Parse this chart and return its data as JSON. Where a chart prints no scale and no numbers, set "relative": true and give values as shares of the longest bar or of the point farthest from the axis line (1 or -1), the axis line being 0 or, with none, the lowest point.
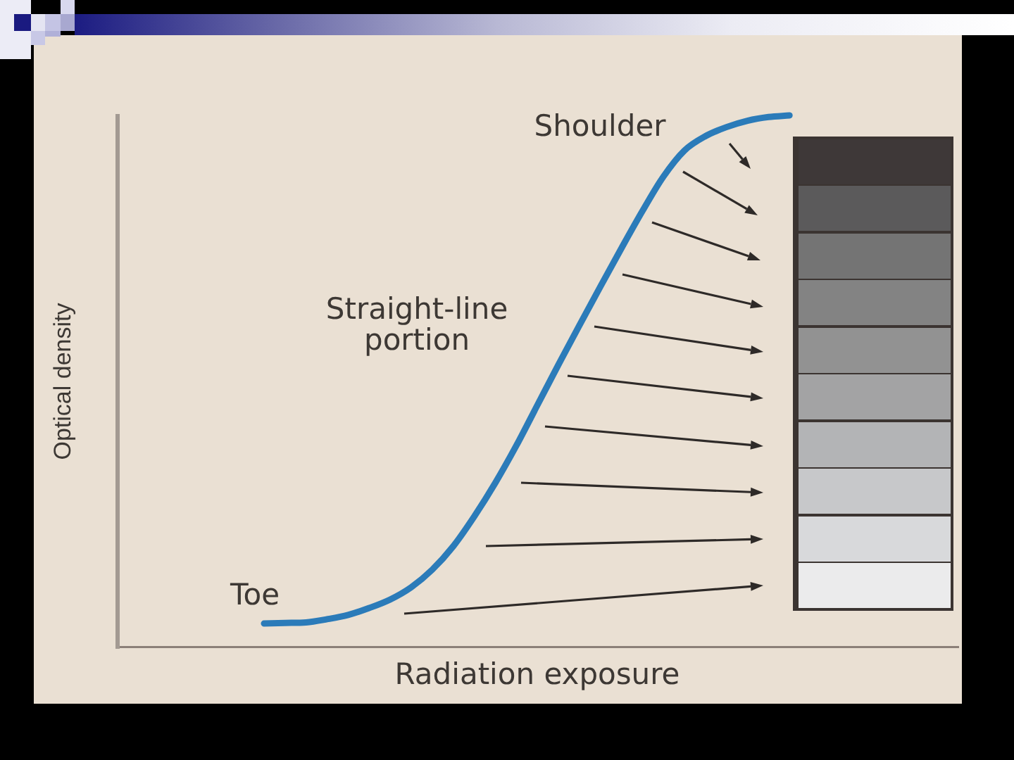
{
  "chart_data": {
    "type": "line",
    "xlabel": "Radiation exposure",
    "ylabel": "Optical density",
    "relative": true,
    "categories": [
      null,
      null,
      null,
      null,
      null,
      null,
      null,
      null,
      null,
      null,
      null,
      null,
      null,
      null,
      null,
      null,
      null,
      null,
      null,
      null,
      null,
      null,
      null,
      null,
      null,
      null,
      null,
      null,
      null,
      null,
      null,
      null,
      null,
      null,
      null,
      null,
      null,
      null,
      null,
      null,
      null
    ],
    "series": [
      {
        "color": "#2b7bb9",
        "values": [
          null,
          null,
          null,
          null,
          null,
          null,
          null,
          0.045,
          0.046,
          0.047,
          0.053,
          0.061,
          0.074,
          0.09,
          0.113,
          0.146,
          0.19,
          0.246,
          0.309,
          0.379,
          0.455,
          0.531,
          0.605,
          0.678,
          0.75,
          0.82,
          0.885,
          0.934,
          0.961,
          0.978,
          0.99,
          0.997,
          1,
          null,
          null,
          null,
          null,
          null,
          null,
          null,
          null
        ]
      }
    ],
    "annotations": [
      "Shoulder",
      "Straight-line portion",
      "Toe"
    ]
  }
}
